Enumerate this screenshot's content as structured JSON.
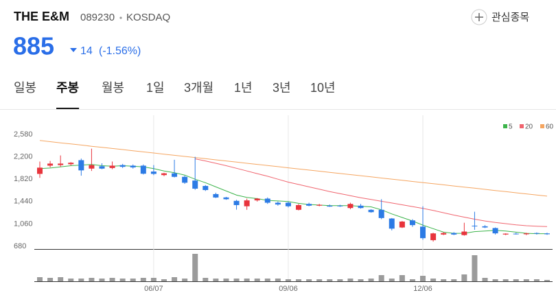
{
  "header": {
    "name": "THE E&M",
    "code": "089230",
    "market": "KOSDAQ",
    "watch": "관심종목",
    "price": "885",
    "change": "14",
    "change_pct": "(-1.56%)"
  },
  "tabs": [
    "일봉",
    "주봉",
    "월봉",
    "1일",
    "3개월",
    "1년",
    "3년",
    "10년"
  ],
  "active_tab": 1,
  "chart_data": {
    "type": "candlestick",
    "categories": [
      null,
      null,
      null,
      null,
      null,
      null,
      null,
      null,
      null,
      null,
      null,
      "06/07",
      null,
      null,
      null,
      null,
      null,
      null,
      null,
      null,
      null,
      null,
      null,
      null,
      "09/06",
      null,
      null,
      null,
      null,
      null,
      null,
      null,
      null,
      null,
      null,
      null,
      null,
      "12/06",
      null,
      null,
      null,
      null,
      null,
      null,
      null,
      null,
      null,
      null,
      null,
      null
    ],
    "open": [
      1910,
      2050,
      2060,
      2075,
      2143,
      2000,
      2040,
      2010,
      2060,
      2050,
      2050,
      1950,
      1890,
      1920,
      1860,
      1797,
      1705,
      1567,
      1510,
      1452,
      1360,
      1460,
      1490,
      1420,
      1420,
      1300,
      1400,
      1370,
      1370,
      1370,
      1330,
      1370,
      1300,
      1300,
      1152,
      1000,
      1120,
      1014,
      784,
      880,
      905,
      870,
      1030,
      1020,
      990,
      880,
      895,
      885,
      905,
      899
    ],
    "high": [
      2120,
      2130,
      2224,
      2110,
      2170,
      2339,
      2090,
      2120,
      2080,
      2070,
      2070,
      2060,
      1930,
      2150,
      1880,
      2200,
      1720,
      1590,
      1520,
      1470,
      1490,
      1500,
      1510,
      1440,
      1440,
      1400,
      1420,
      1400,
      1390,
      1385,
      1420,
      1400,
      1310,
      1480,
      1160,
      1110,
      1140,
      1360,
      910,
      920,
      920,
      1080,
      1267,
      1040,
      1000,
      900,
      910,
      910,
      915,
      910
    ],
    "low": [
      1843,
      2020,
      2030,
      2050,
      1880,
      1960,
      1990,
      1990,
      2010,
      2000,
      1900,
      1890,
      1870,
      1850,
      1740,
      1640,
      1620,
      1500,
      1470,
      1302,
      1300,
      1440,
      1400,
      1370,
      1340,
      1290,
      1360,
      1360,
      1350,
      1350,
      1310,
      1320,
      1250,
      1140,
      950,
      990,
      1010,
      790,
      760,
      870,
      870,
      860,
      960,
      990,
      880,
      870,
      880,
      870,
      880,
      875
    ],
    "close": [
      2016,
      2085,
      2085,
      2100,
      1970,
      2060,
      2000,
      2050,
      2030,
      2020,
      1913,
      1910,
      1920,
      1860,
      1760,
      1659,
      1636,
      1509,
      1480,
      1380,
      1460,
      1490,
      1420,
      1390,
      1360,
      1380,
      1370,
      1385,
      1355,
      1360,
      1400,
      1330,
      1260,
      1160,
      980,
      1100,
      1040,
      818,
      899,
      905,
      880,
      930,
      1020,
      1000,
      900,
      895,
      890,
      900,
      899,
      885
    ],
    "up_color": "#e8343c",
    "down_color": "#2c7be5",
    "ylim": [
      680,
      2580
    ],
    "yticks": [
      680,
      {
        "value": 1060,
        "label": "1,060"
      },
      {
        "value": 1440,
        "label": "1,440"
      },
      {
        "value": 1820,
        "label": "1,820"
      },
      {
        "value": 2200,
        "label": "2,200"
      },
      {
        "value": 2580,
        "label": "2,580"
      }
    ],
    "series": [
      {
        "name": "5",
        "color": "#3cb44b",
        "values": [
          2000,
          2010,
          2030,
          2050,
          2060,
          2070,
          2050,
          2040,
          2050,
          2040,
          2030,
          2000,
          1960,
          1930,
          1890,
          1820,
          1760,
          1690,
          1620,
          1550,
          1510,
          1490,
          1460,
          1450,
          1440,
          1410,
          1390,
          1380,
          1370,
          1370,
          1370,
          1360,
          1350,
          1300,
          1230,
          1170,
          1110,
          1040,
          980,
          920,
          900,
          900,
          930,
          940,
          950,
          940,
          920,
          900,
          895,
          895
        ]
      },
      {
        "name": "20",
        "color": "#f0646e",
        "values": [
          null,
          null,
          null,
          null,
          null,
          null,
          null,
          null,
          null,
          null,
          null,
          null,
          null,
          null,
          null,
          2166,
          2130,
          2090,
          2050,
          2005,
          1960,
          1915,
          1870,
          1820,
          1770,
          1730,
          1690,
          1650,
          1610,
          1575,
          1540,
          1505,
          1475,
          1445,
          1415,
          1385,
          1355,
          1325,
          1290,
          1250,
          1210,
          1175,
          1140,
          1110,
          1085,
          1065,
          1045,
          1030,
          1020,
          1014
        ]
      },
      {
        "name": "60",
        "color": "#f5a560",
        "values": [
          2477,
          2458,
          2438,
          2419,
          2400,
          2380,
          2361,
          2342,
          2323,
          2303,
          2284,
          2265,
          2245,
          2226,
          2207,
          2188,
          2168,
          2149,
          2130,
          2110,
          2091,
          2072,
          2052,
          2033,
          2014,
          1995,
          1975,
          1956,
          1937,
          1917,
          1898,
          1879,
          1860,
          1840,
          1821,
          1802,
          1782,
          1763,
          1744,
          1724,
          1705,
          1686,
          1667,
          1647,
          1628,
          1609,
          1589,
          1570,
          1551,
          1532
        ]
      }
    ],
    "volume": [
      6,
      5,
      6,
      4,
      4,
      5,
      4,
      5,
      4,
      4,
      5,
      5,
      3,
      6,
      4,
      40,
      5,
      4,
      4,
      4,
      4,
      4,
      4,
      4,
      3,
      3,
      3,
      3,
      3,
      3,
      4,
      3,
      4,
      9,
      4,
      9,
      3,
      8,
      4,
      3,
      3,
      10,
      38,
      5,
      3,
      3,
      3,
      3,
      3,
      2
    ],
    "volume_color": "#9b9b9b"
  }
}
